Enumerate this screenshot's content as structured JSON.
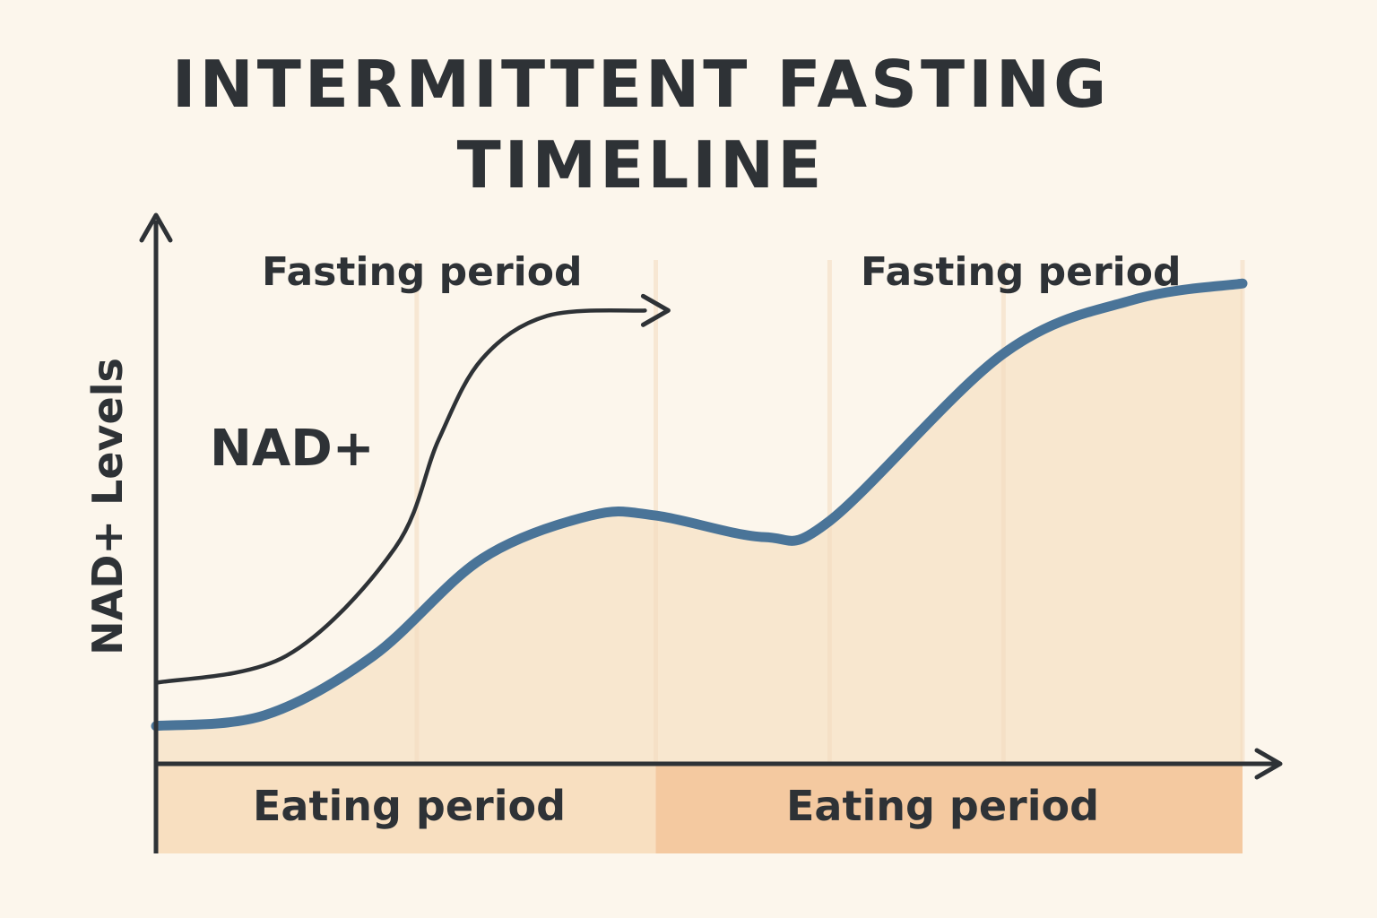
{
  "title_line_1": "INTERMITTENT FASTING",
  "title_line_2": "TIMELINE",
  "chart_data": {
    "type": "line",
    "title": "INTERMITTENT FASTING TIMELINE",
    "ylabel": "NAD+ Levels",
    "xlabel": "",
    "grid": false,
    "x_range": [
      0,
      1
    ],
    "y_range": [
      0,
      1
    ],
    "periods": [
      {
        "label": "Fasting period",
        "kind": "fasting",
        "start": 0.0,
        "end": 0.46
      },
      {
        "label": "Fasting period",
        "kind": "fasting",
        "start": 0.46,
        "end": 1.0
      },
      {
        "label": "Eating period",
        "kind": "eating",
        "start": 0.0,
        "end": 0.46
      },
      {
        "label": "Eating period",
        "kind": "eating",
        "start": 0.46,
        "end": 1.0
      }
    ],
    "series": [
      {
        "name": "NAD+",
        "role": "dark arrow curve",
        "x": [
          0.0,
          0.12,
          0.22,
          0.26,
          0.3,
          0.36,
          0.45
        ],
        "y": [
          0.15,
          0.2,
          0.4,
          0.6,
          0.75,
          0.83,
          0.84
        ]
      },
      {
        "name": "",
        "role": "blue area curve",
        "x": [
          0.0,
          0.1,
          0.2,
          0.3,
          0.4,
          0.46,
          0.56,
          0.62,
          0.78,
          0.9,
          1.0
        ],
        "y": [
          0.07,
          0.09,
          0.2,
          0.38,
          0.46,
          0.46,
          0.42,
          0.45,
          0.76,
          0.86,
          0.89
        ]
      }
    ],
    "colors": {
      "background": "#fcf6ec",
      "line": "#4a7498",
      "area": "#f7e2c5",
      "eating_band_1": "#f8dfc0",
      "eating_band_2": "#f4c9a0",
      "axis": "#2e3236",
      "gridline": "#f3dcc0"
    }
  }
}
